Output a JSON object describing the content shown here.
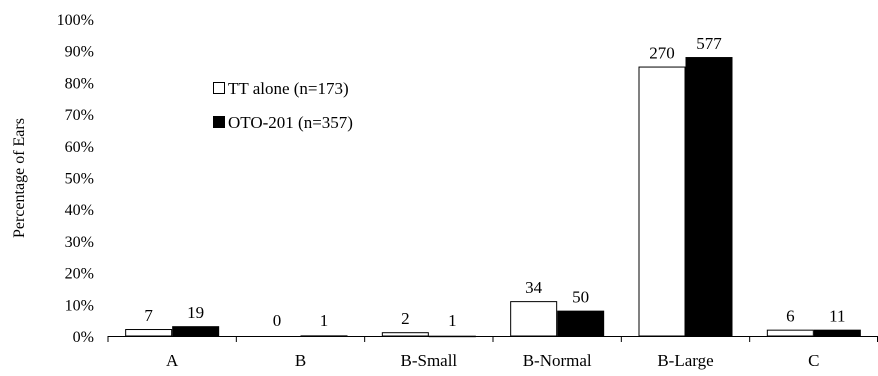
{
  "chart_data": {
    "type": "bar",
    "title": "",
    "xlabel": "",
    "ylabel": "Percentage of Ears",
    "ylim": [
      0,
      100
    ],
    "yticks": [
      "0%",
      "10%",
      "20%",
      "30%",
      "40%",
      "50%",
      "60%",
      "70%",
      "80%",
      "90%",
      "100%"
    ],
    "categories": [
      "A",
      "B",
      "B-Small",
      "B-Normal",
      "B-Large",
      "C"
    ],
    "series": [
      {
        "name": "TT alone (n=173)",
        "color": "#ffffff",
        "values": [
          2.2,
          0,
          1.2,
          11.0,
          85.0,
          2.0
        ],
        "labels": [
          "7",
          "0",
          "2",
          "34",
          "270",
          "6"
        ]
      },
      {
        "name": "OTO-201 (n=357)",
        "color": "#000000",
        "values": [
          3.1,
          0.2,
          0.1,
          8.0,
          88.0,
          2.0
        ],
        "labels": [
          "19",
          "1",
          "1",
          "50",
          "577",
          "11"
        ]
      }
    ],
    "legend_position": "upper-left",
    "grid": false
  }
}
